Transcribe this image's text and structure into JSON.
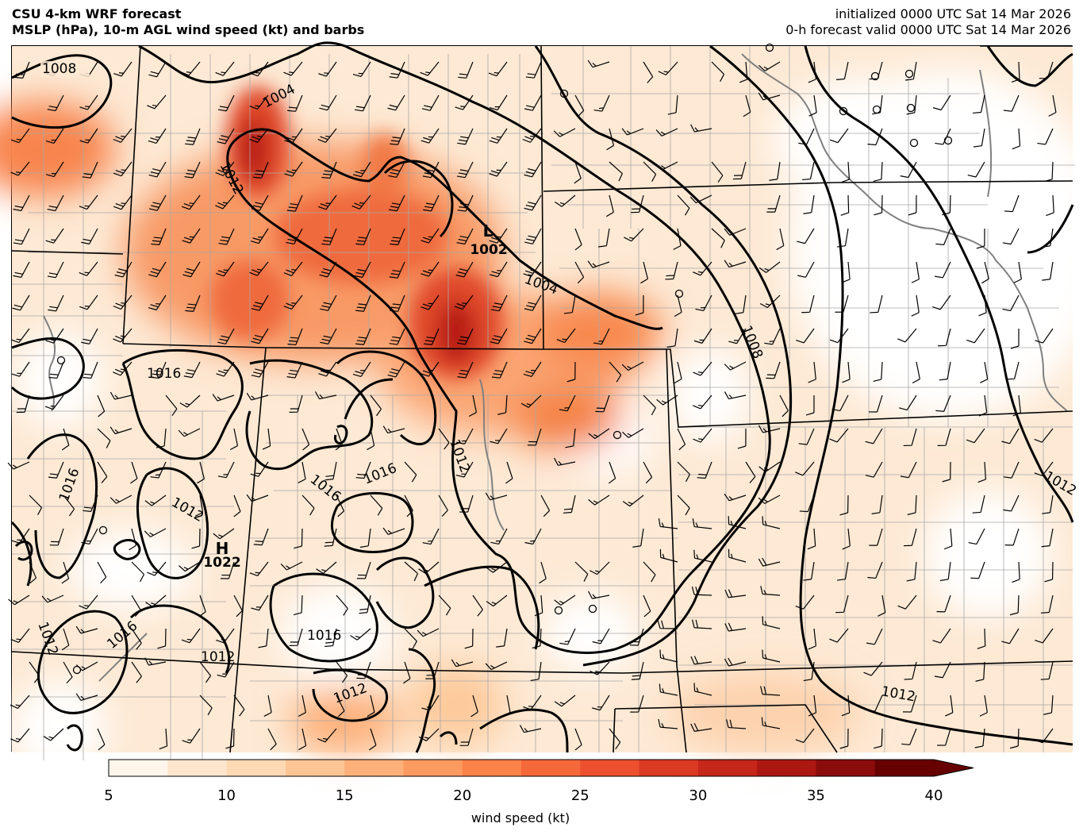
{
  "header": {
    "title_line1": "CSU 4-km WRF forecast",
    "title_line2": "MSLP (hPa), 10-m AGL wind speed (kt) and barbs",
    "init_line": "initialized 0000 UTC Sat 14 Mar 2026",
    "valid_line": "0-h forecast valid 0000 UTC Sat 14 Mar 2026"
  },
  "colorbar": {
    "label": "wind speed (kt)",
    "ticks": [
      "5",
      "10",
      "15",
      "20",
      "25",
      "30",
      "35",
      "40"
    ],
    "colors": [
      "#fff5eb",
      "#fee6ce",
      "#fdd9b4",
      "#fdc596",
      "#fdb07a",
      "#fd9a60",
      "#fb8249",
      "#f5683a",
      "#ec502e",
      "#db3a23",
      "#c5271a",
      "#ad1712",
      "#8b0c0c",
      "#670000"
    ],
    "extend": "max"
  },
  "map": {
    "isobar_labels": [
      {
        "text": "1008"
      },
      {
        "text": "1004"
      },
      {
        "text": "1012"
      },
      {
        "text": "1004"
      },
      {
        "text": "1016"
      },
      {
        "text": "1008"
      },
      {
        "text": "1012"
      },
      {
        "text": "1016"
      },
      {
        "text": "1016"
      },
      {
        "text": "1016"
      },
      {
        "text": "1012"
      },
      {
        "text": "1016"
      },
      {
        "text": "1012"
      },
      {
        "text": "1012"
      },
      {
        "text": "1012"
      },
      {
        "text": "1012"
      },
      {
        "text": "1012"
      },
      {
        "text": "1016"
      }
    ],
    "pressure_centers": [
      {
        "letter": "L",
        "value": "1002"
      },
      {
        "letter": "H",
        "value": "1022"
      }
    ]
  }
}
